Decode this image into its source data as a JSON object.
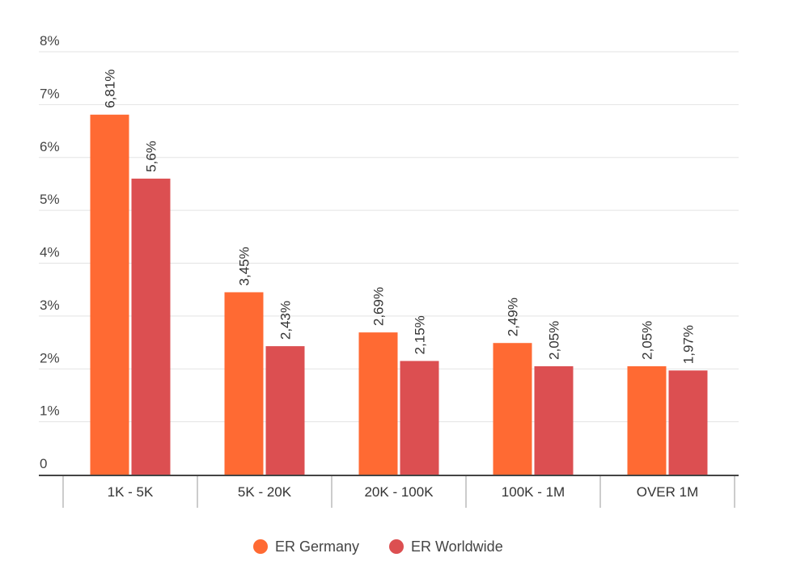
{
  "chart_data": {
    "type": "bar",
    "categories": [
      "1K - 5K",
      "5K - 20K",
      "20K - 100K",
      "100K - 1M",
      "OVER 1M"
    ],
    "series": [
      {
        "name": "ER Germany",
        "color": "#ff6a33",
        "values": [
          6.81,
          3.45,
          2.69,
          2.49,
          2.05
        ],
        "labels": [
          "6,81%",
          "3,45%",
          "2,69%",
          "2,49%",
          "2,05%"
        ]
      },
      {
        "name": "ER Worldwide",
        "color": "#dc4f51",
        "values": [
          5.6,
          2.43,
          2.15,
          2.05,
          1.97
        ],
        "labels": [
          "5,6%",
          "2,43%",
          "2,15%",
          "2,05%",
          "1,97%"
        ]
      }
    ],
    "yticks": [
      0,
      1,
      2,
      3,
      4,
      5,
      6,
      7,
      8
    ],
    "ytick_labels": [
      "0",
      "1%",
      "2%",
      "3%",
      "4%",
      "5%",
      "6%",
      "7%",
      "8%"
    ],
    "ylim": [
      0,
      8
    ],
    "grid": true,
    "legend_position": "bottom-center",
    "title": "",
    "xlabel": "",
    "ylabel": ""
  }
}
